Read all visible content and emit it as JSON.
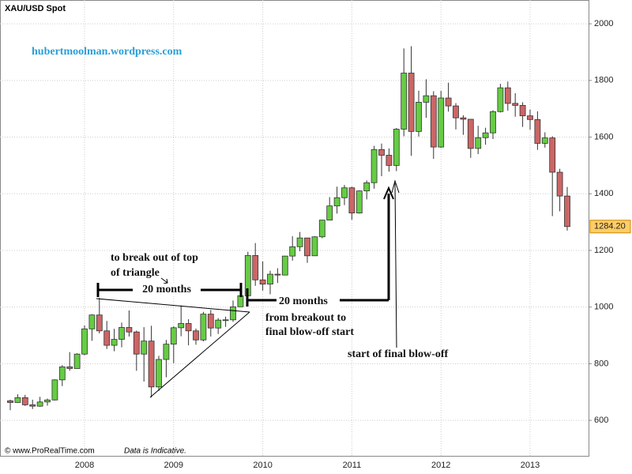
{
  "chart_data": {
    "type": "candlestick",
    "title": "XAU/USD Spot",
    "subtitle": "hubertmoolman.wordpress.com",
    "categories": [
      null,
      null,
      null,
      null,
      null,
      null,
      null,
      null,
      null,
      null,
      "2008",
      null,
      null,
      null,
      null,
      null,
      null,
      null,
      null,
      null,
      null,
      null,
      "2009",
      null,
      null,
      null,
      null,
      null,
      null,
      null,
      null,
      null,
      null,
      null,
      "2010",
      null,
      null,
      null,
      null,
      null,
      null,
      null,
      null,
      null,
      null,
      null,
      "2011",
      null,
      null,
      null,
      null,
      null,
      null,
      null,
      null,
      null,
      null,
      null,
      "2012",
      null,
      null,
      null,
      null,
      null,
      null,
      null,
      null,
      null,
      null,
      null,
      "2013",
      null,
      null,
      null,
      null,
      null
    ],
    "open": [
      669,
      663,
      680,
      655,
      650,
      665,
      672,
      743,
      789,
      783,
      834,
      923,
      972,
      916,
      865,
      886,
      928,
      912,
      834,
      880,
      718,
      815,
      869,
      927,
      942,
      916,
      884,
      975,
      926,
      954,
      955,
      1001,
      1040,
      1182,
      1096,
      1081,
      1116,
      1113,
      1180,
      1213,
      1244,
      1181,
      1248,
      1307,
      1357,
      1386,
      1421,
      1332,
      1410,
      1439,
      1556,
      1536,
      1500,
      1628,
      1826,
      1620,
      1723,
      1746,
      1565,
      1738,
      1710,
      1668,
      1663,
      1560,
      1598,
      1615,
      1690,
      1774,
      1719,
      1712,
      1675,
      1662,
      1578,
      1597,
      1476,
      1392
    ],
    "high": [
      673,
      692,
      690,
      673,
      683,
      677,
      745,
      795,
      841,
      837,
      935,
      975,
      1033,
      951,
      923,
      945,
      988,
      917,
      929,
      934,
      828,
      884,
      932,
      1006,
      957,
      924,
      983,
      990,
      961,
      966,
      1023,
      1071,
      1195,
      1226,
      1161,
      1128,
      1137,
      1181,
      1250,
      1265,
      1244,
      1250,
      1308,
      1388,
      1425,
      1431,
      1425,
      1412,
      1447,
      1569,
      1577,
      1560,
      1632,
      1913,
      1921,
      1764,
      1804,
      1762,
      1763,
      1792,
      1720,
      1677,
      1663,
      1640,
      1633,
      1695,
      1788,
      1796,
      1755,
      1723,
      1697,
      1691,
      1617,
      1603,
      1488,
      1424
    ],
    "low": [
      636,
      664,
      651,
      640,
      648,
      652,
      670,
      721,
      775,
      783,
      830,
      881,
      907,
      852,
      844,
      858,
      896,
      775,
      737,
      681,
      704,
      752,
      802,
      897,
      865,
      867,
      879,
      896,
      905,
      930,
      948,
      1001,
      1040,
      1075,
      1058,
      1045,
      1085,
      1112,
      1164,
      1197,
      1156,
      1181,
      1243,
      1308,
      1330,
      1360,
      1308,
      1330,
      1380,
      1418,
      1462,
      1478,
      1480,
      1603,
      1534,
      1602,
      1668,
      1523,
      1562,
      1690,
      1627,
      1608,
      1527,
      1540,
      1573,
      1593,
      1687,
      1693,
      1672,
      1636,
      1626,
      1555,
      1563,
      1321,
      1338,
      1270
    ],
    "close": [
      663,
      680,
      655,
      650,
      665,
      672,
      743,
      789,
      783,
      834,
      923,
      972,
      916,
      865,
      886,
      928,
      912,
      834,
      880,
      718,
      815,
      869,
      927,
      942,
      916,
      884,
      975,
      926,
      954,
      955,
      1001,
      1040,
      1182,
      1096,
      1081,
      1116,
      1113,
      1180,
      1213,
      1244,
      1181,
      1248,
      1307,
      1357,
      1386,
      1421,
      1332,
      1410,
      1439,
      1556,
      1536,
      1500,
      1628,
      1826,
      1620,
      1723,
      1746,
      1565,
      1738,
      1710,
      1668,
      1663,
      1560,
      1598,
      1615,
      1690,
      1774,
      1719,
      1712,
      1675,
      1662,
      1578,
      1597,
      1476,
      1392,
      1284.2
    ],
    "price_label": "1284.20",
    "up_color": "#66cc44",
    "down_color": "#cc6666",
    "ylim": [
      472,
      2084
    ],
    "yticks": [
      600,
      800,
      1000,
      1200,
      1400,
      1600,
      1800,
      2000
    ],
    "grid": true,
    "annotations": [
      "to break out of top",
      "of triangle",
      "20 months",
      "20 months",
      "from breakout to",
      "final blow-off start",
      "start of final blow-off"
    ],
    "footer": "© www.ProRealTime.com",
    "note": "Data is Indicative."
  }
}
